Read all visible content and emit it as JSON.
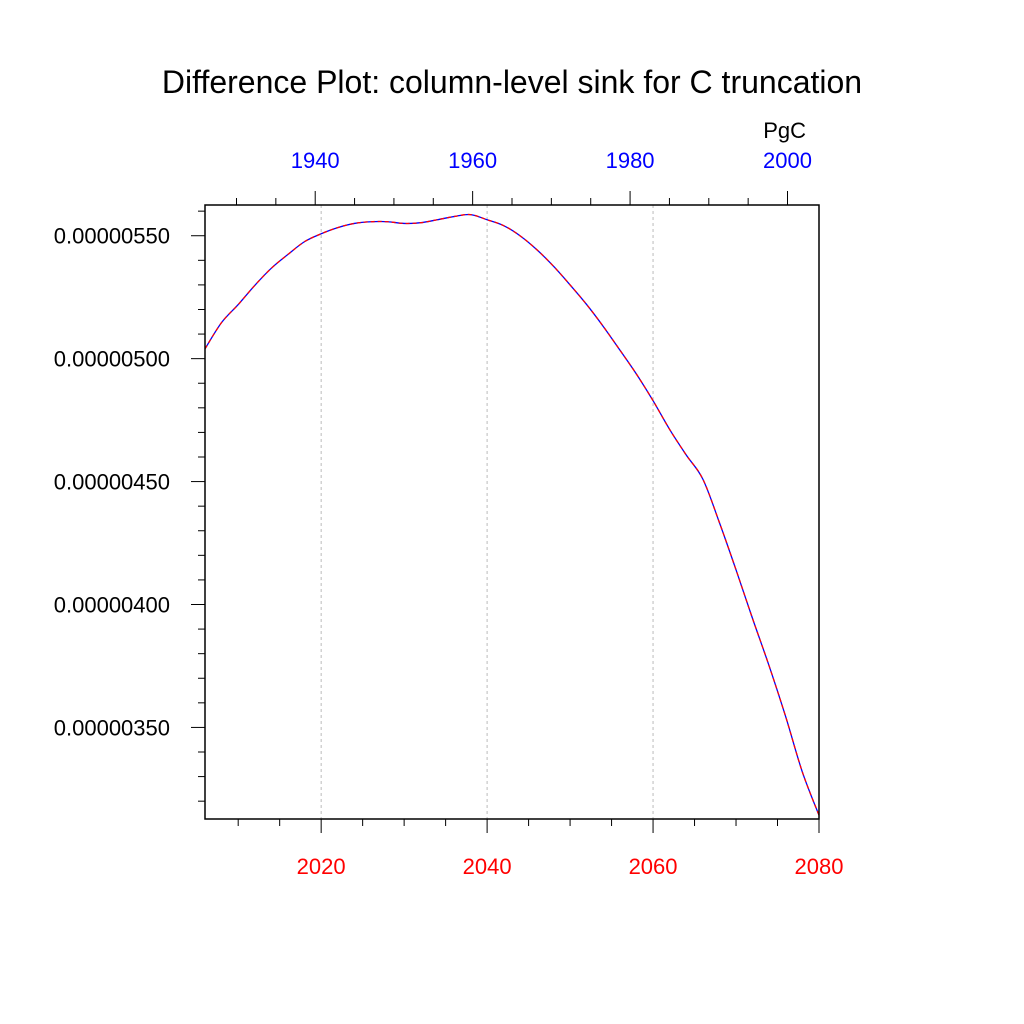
{
  "chart_data": {
    "type": "line",
    "title": "Difference Plot: column-level sink for C truncation",
    "units_label": "PgC",
    "grid": "vertical dashed at bottom-axis major ticks",
    "x_bottom": {
      "range": [
        2006,
        2080
      ],
      "ticks": [
        2020,
        2040,
        2060,
        2080
      ],
      "labels": [
        "2020",
        "2040",
        "2060",
        "2080"
      ],
      "color": "#ff0000"
    },
    "x_top": {
      "range": [
        1926,
        2004
      ],
      "ticks": [
        1940,
        1960,
        1980,
        2000
      ],
      "labels": [
        "1940",
        "1960",
        "1980",
        "2000"
      ],
      "color": "#0000ff"
    },
    "y": {
      "range": [
        3.1275e-06,
        5.625e-06
      ],
      "ticks": [
        3.5e-06,
        4e-06,
        4.5e-06,
        5e-06,
        5.5e-06
      ],
      "labels": [
        "0.00000350",
        "0.00000400",
        "0.00000450",
        "0.00000500",
        "0.00000550"
      ]
    },
    "series": [
      {
        "color": "#0000ff",
        "style": "solid",
        "x": [
          2006,
          2008,
          2010,
          2012,
          2014,
          2016,
          2018,
          2020,
          2022,
          2024,
          2026,
          2028,
          2030,
          2032,
          2034,
          2036,
          2038,
          2040,
          2042,
          2044,
          2046,
          2048,
          2050,
          2052,
          2054,
          2056,
          2058,
          2060,
          2062,
          2064,
          2066,
          2068,
          2070,
          2072,
          2074,
          2076,
          2078,
          2080
        ],
        "y": [
          5.04e-06,
          5.147e-06,
          5.22e-06,
          5.298e-06,
          5.368e-06,
          5.424e-06,
          5.476e-06,
          5.508e-06,
          5.533e-06,
          5.55e-06,
          5.557e-06,
          5.557e-06,
          5.55e-06,
          5.553e-06,
          5.565e-06,
          5.578e-06,
          5.586e-06,
          5.565e-06,
          5.541e-06,
          5.499e-06,
          5.443e-06,
          5.376e-06,
          5.3e-06,
          5.22e-06,
          5.131e-06,
          5.035e-06,
          4.937e-06,
          4.829e-06,
          4.712e-06,
          4.608e-06,
          4.51e-06,
          4.333e-06,
          4.141e-06,
          3.942e-06,
          3.749e-06,
          3.542e-06,
          3.318e-06,
          3.143e-06
        ]
      },
      {
        "color": "#ff0000",
        "style": "dashed",
        "x": [
          2006,
          2008,
          2010,
          2012,
          2014,
          2016,
          2018,
          2020,
          2022,
          2024,
          2026,
          2028,
          2030,
          2032,
          2034,
          2036,
          2038,
          2040,
          2042,
          2044,
          2046,
          2048,
          2050,
          2052,
          2054,
          2056,
          2058,
          2060,
          2062,
          2064,
          2066,
          2068,
          2070,
          2072,
          2074,
          2076,
          2078,
          2080
        ],
        "y": [
          5.04e-06,
          5.147e-06,
          5.22e-06,
          5.298e-06,
          5.368e-06,
          5.424e-06,
          5.476e-06,
          5.508e-06,
          5.533e-06,
          5.55e-06,
          5.557e-06,
          5.557e-06,
          5.55e-06,
          5.553e-06,
          5.565e-06,
          5.578e-06,
          5.586e-06,
          5.565e-06,
          5.541e-06,
          5.499e-06,
          5.443e-06,
          5.376e-06,
          5.3e-06,
          5.22e-06,
          5.131e-06,
          5.035e-06,
          4.937e-06,
          4.829e-06,
          4.712e-06,
          4.608e-06,
          4.51e-06,
          4.333e-06,
          4.141e-06,
          3.942e-06,
          3.749e-06,
          3.542e-06,
          3.318e-06,
          3.143e-06
        ]
      }
    ]
  }
}
